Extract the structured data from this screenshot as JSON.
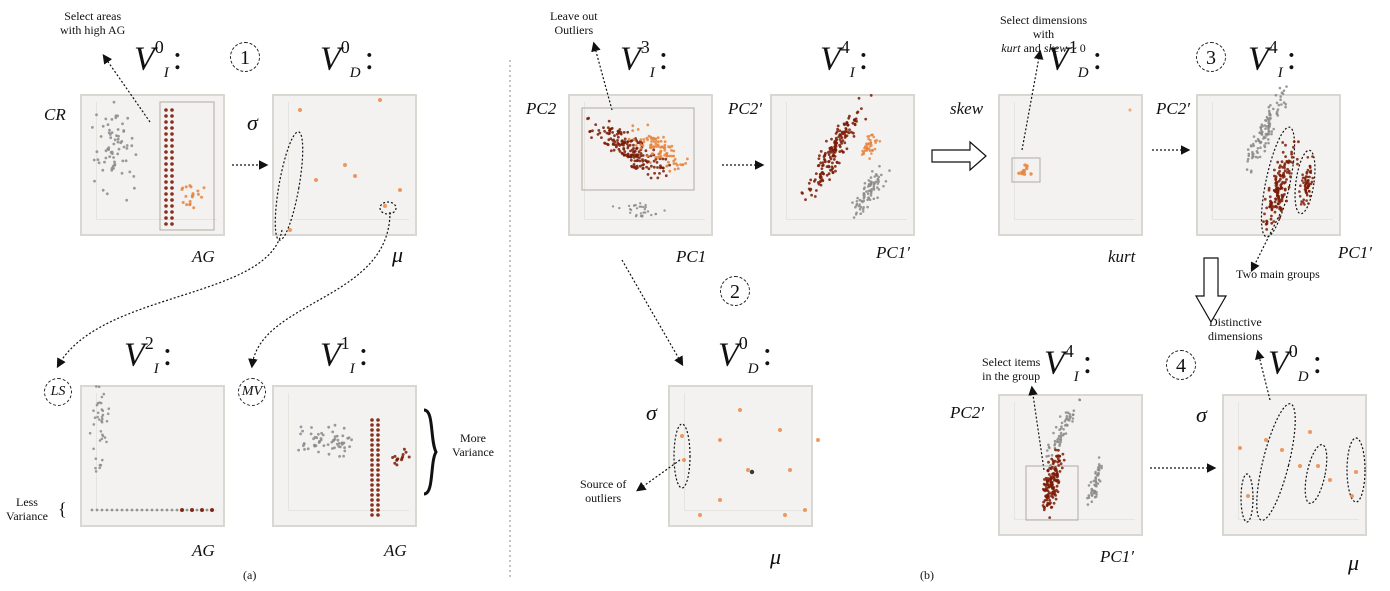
{
  "panel_a": {
    "caption": "(a)",
    "step_badge": "1",
    "annotation_select": "Select areas\nwith high AG",
    "plot_vi0": {
      "title_main": "V",
      "title_sup": "0",
      "title_sub": "I",
      "y_label": "CR",
      "x_label": "AG"
    },
    "plot_vd0": {
      "title_main": "V",
      "title_sup": "0",
      "title_sub": "D",
      "y_label": "σ",
      "x_label": "μ"
    },
    "plot_vi2": {
      "title_main": "V",
      "title_sup": "2",
      "title_sub": "I",
      "tag": "LS",
      "x_label": "AG"
    },
    "plot_vi1": {
      "title_main": "V",
      "title_sup": "1",
      "title_sub": "I",
      "tag": "MV",
      "x_label": "AG"
    },
    "annotation_more": "More\nVariance",
    "annotation_less": "Less\nVariance",
    "less_brace": "{",
    "title_colon": ":"
  },
  "panel_b": {
    "caption": "(b)",
    "step_badges": [
      "2",
      "3",
      "4"
    ],
    "annotation_outliers": "Leave out\nOutliers",
    "annotation_dimensions_1": "Select dimensions\nwith",
    "annotation_dimensions_2_kurt": "kurt",
    "annotation_dimensions_2_and": " and ",
    "annotation_dimensions_2_skew": "skew",
    "annotation_dimensions_2_tail": " ~ 0",
    "annotation_source": "Source of\noutliers",
    "annotation_groups": "Two main groups",
    "annotation_select_items": "Select items\nin the group",
    "annotation_distinctive": "Distinctive\ndimensions",
    "plot_vi3": {
      "title_main": "V",
      "title_sup": "3",
      "title_sub": "I",
      "y_label": "PC2",
      "x_label": "PC1"
    },
    "plot_vi4a": {
      "title_main": "V",
      "title_sup": "4",
      "title_sub": "I",
      "y_label": "PC2′",
      "x_label": "PC1′"
    },
    "plot_vd1": {
      "title_main": "V",
      "title_sup": "1",
      "title_sub": "D",
      "y_label": "skew",
      "x_label": "kurt"
    },
    "plot_vi4b": {
      "title_main": "V",
      "title_sup": "4",
      "title_sub": "I",
      "y_label": "PC2′",
      "x_label": "PC1′"
    },
    "plot_vd0": {
      "title_main": "V",
      "title_sup": "0",
      "title_sub": "D",
      "y_label": "σ",
      "x_label": "μ"
    },
    "plot_vi4c": {
      "title_main": "V",
      "title_sup": "4",
      "title_sub": "I",
      "y_label": "PC2′",
      "x_label": "PC1′"
    },
    "plot_vd0b": {
      "title_main": "V",
      "title_sup": "0",
      "title_sub": "D",
      "y_label": "σ",
      "x_label": "μ"
    }
  },
  "colors": {
    "orange": "#e8823a",
    "dark_red": "#7a1a05",
    "gray": "#8a8a8a"
  }
}
